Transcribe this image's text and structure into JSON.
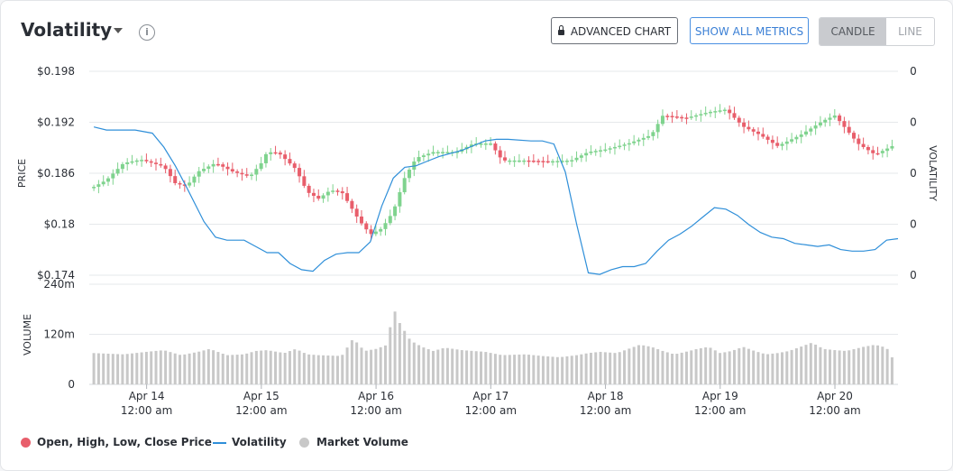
{
  "header": {
    "title": "Volatility",
    "info_glyph": "i",
    "advanced_chart_label": "ADVANCED CHART",
    "show_all_metrics_label": "SHOW ALL METRICS",
    "candle_label": "CANDLE",
    "line_label": "LINE",
    "selected_view": "CANDLE"
  },
  "colors": {
    "up": "#7fd38e",
    "down": "#e85e6b",
    "volatility_line": "#2f8fd9",
    "volume": "#c8c8c8",
    "accent_button": "#3a7fd5"
  },
  "legend": {
    "ohlc": "Open, High, Low, Close Price",
    "volatility": "Volatility",
    "volume": "Market Volume"
  },
  "chart_data": {
    "type": "candlestick",
    "price_axis": {
      "label": "PRICE",
      "ticks": [
        "$0.198",
        "$0.192",
        "$0.186",
        "$0.18",
        "$0.174"
      ],
      "ylim": [
        0.174,
        0.198
      ]
    },
    "volatility_axis": {
      "label": "VOLATILITY",
      "ticks": [
        "0",
        "0",
        "0",
        "0",
        "0"
      ]
    },
    "volume_axis": {
      "label": "VOLUME",
      "ticks": [
        "240m",
        "120m",
        "0"
      ],
      "ylim": [
        0,
        240
      ]
    },
    "x_axis": {
      "dates": [
        "Apr 14",
        "Apr 15",
        "Apr 16",
        "Apr 17",
        "Apr 18",
        "Apr 19",
        "Apr 20"
      ],
      "times": [
        "12:00 am",
        "12:00 am",
        "12:00 am",
        "12:00 am",
        "12:00 am",
        "12:00 am",
        "12:00 am"
      ],
      "range_days": [
        -0.5,
        6.55
      ]
    },
    "close_path": [
      [
        -0.46,
        0.1844
      ],
      [
        -0.35,
        0.1852
      ],
      [
        -0.2,
        0.1872
      ],
      [
        -0.05,
        0.1876
      ],
      [
        0.15,
        0.1868
      ],
      [
        0.25,
        0.1848
      ],
      [
        0.35,
        0.1845
      ],
      [
        0.45,
        0.1862
      ],
      [
        0.6,
        0.1872
      ],
      [
        0.75,
        0.1862
      ],
      [
        0.9,
        0.1856
      ],
      [
        1.0,
        0.1872
      ],
      [
        1.05,
        0.1885
      ],
      [
        1.15,
        0.1884
      ],
      [
        1.3,
        0.1865
      ],
      [
        1.4,
        0.1838
      ],
      [
        1.5,
        0.183
      ],
      [
        1.6,
        0.184
      ],
      [
        1.7,
        0.1838
      ],
      [
        1.85,
        0.1805
      ],
      [
        1.95,
        0.1788
      ],
      [
        2.05,
        0.1795
      ],
      [
        2.15,
        0.1815
      ],
      [
        2.25,
        0.1855
      ],
      [
        2.35,
        0.1878
      ],
      [
        2.5,
        0.1885
      ],
      [
        2.7,
        0.1885
      ],
      [
        2.85,
        0.1895
      ],
      [
        3.0,
        0.1895
      ],
      [
        3.1,
        0.1875
      ],
      [
        3.3,
        0.1875
      ],
      [
        3.5,
        0.1874
      ],
      [
        3.7,
        0.1875
      ],
      [
        3.85,
        0.1885
      ],
      [
        4.0,
        0.1888
      ],
      [
        4.2,
        0.1895
      ],
      [
        4.4,
        0.1905
      ],
      [
        4.5,
        0.1928
      ],
      [
        4.7,
        0.1925
      ],
      [
        4.9,
        0.1932
      ],
      [
        5.05,
        0.1935
      ],
      [
        5.2,
        0.1915
      ],
      [
        5.35,
        0.1905
      ],
      [
        5.5,
        0.1892
      ],
      [
        5.7,
        0.1905
      ],
      [
        5.9,
        0.1922
      ],
      [
        6.0,
        0.1928
      ],
      [
        6.2,
        0.1895
      ],
      [
        6.35,
        0.1882
      ],
      [
        6.5,
        0.1892
      ]
    ],
    "volatility_path": [
      [
        -0.46,
        0.31
      ],
      [
        -0.35,
        0.29
      ],
      [
        -0.1,
        0.29
      ],
      [
        0.05,
        0.27
      ],
      [
        0.15,
        0.18
      ],
      [
        0.25,
        0.06
      ],
      [
        0.35,
        -0.08
      ],
      [
        0.5,
        -0.3
      ],
      [
        0.6,
        -0.4
      ],
      [
        0.7,
        -0.42
      ],
      [
        0.85,
        -0.42
      ],
      [
        0.95,
        -0.46
      ],
      [
        1.05,
        -0.5
      ],
      [
        1.15,
        -0.5
      ],
      [
        1.25,
        -0.57
      ],
      [
        1.35,
        -0.61
      ],
      [
        1.45,
        -0.62
      ],
      [
        1.55,
        -0.55
      ],
      [
        1.65,
        -0.51
      ],
      [
        1.75,
        -0.5
      ],
      [
        1.85,
        -0.5
      ],
      [
        1.95,
        -0.43
      ],
      [
        2.05,
        -0.2
      ],
      [
        2.15,
        -0.02
      ],
      [
        2.25,
        0.05
      ],
      [
        2.35,
        0.06
      ],
      [
        2.45,
        0.09
      ],
      [
        2.55,
        0.12
      ],
      [
        2.75,
        0.16
      ],
      [
        2.95,
        0.22
      ],
      [
        3.05,
        0.23
      ],
      [
        3.15,
        0.23
      ],
      [
        3.35,
        0.22
      ],
      [
        3.45,
        0.22
      ],
      [
        3.55,
        0.2
      ],
      [
        3.65,
        0.02
      ],
      [
        3.75,
        -0.32
      ],
      [
        3.85,
        -0.63
      ],
      [
        3.95,
        -0.64
      ],
      [
        4.05,
        -0.61
      ],
      [
        4.15,
        -0.59
      ],
      [
        4.25,
        -0.59
      ],
      [
        4.35,
        -0.57
      ],
      [
        4.45,
        -0.49
      ],
      [
        4.55,
        -0.42
      ],
      [
        4.65,
        -0.38
      ],
      [
        4.75,
        -0.33
      ],
      [
        4.85,
        -0.27
      ],
      [
        4.95,
        -0.21
      ],
      [
        5.05,
        -0.22
      ],
      [
        5.15,
        -0.26
      ],
      [
        5.25,
        -0.32
      ],
      [
        5.35,
        -0.37
      ],
      [
        5.45,
        -0.4
      ],
      [
        5.55,
        -0.41
      ],
      [
        5.65,
        -0.44
      ],
      [
        5.75,
        -0.45
      ],
      [
        5.85,
        -0.46
      ],
      [
        5.95,
        -0.45
      ],
      [
        6.05,
        -0.48
      ],
      [
        6.15,
        -0.49
      ],
      [
        6.25,
        -0.49
      ],
      [
        6.35,
        -0.48
      ],
      [
        6.45,
        -0.42
      ],
      [
        6.55,
        -0.41
      ]
    ],
    "volume_path": [
      [
        -0.46,
        75
      ],
      [
        -0.2,
        72
      ],
      [
        0.0,
        78
      ],
      [
        0.15,
        82
      ],
      [
        0.3,
        70
      ],
      [
        0.45,
        78
      ],
      [
        0.55,
        85
      ],
      [
        0.7,
        70
      ],
      [
        0.85,
        72
      ],
      [
        0.95,
        80
      ],
      [
        1.05,
        82
      ],
      [
        1.2,
        75
      ],
      [
        1.3,
        85
      ],
      [
        1.4,
        72
      ],
      [
        1.5,
        70
      ],
      [
        1.7,
        68
      ],
      [
        1.8,
        110
      ],
      [
        1.9,
        80
      ],
      [
        2.0,
        85
      ],
      [
        2.1,
        95
      ],
      [
        2.15,
        185
      ],
      [
        2.2,
        150
      ],
      [
        2.3,
        105
      ],
      [
        2.4,
        90
      ],
      [
        2.5,
        80
      ],
      [
        2.6,
        88
      ],
      [
        2.75,
        82
      ],
      [
        2.85,
        80
      ],
      [
        2.95,
        78
      ],
      [
        3.1,
        70
      ],
      [
        3.3,
        72
      ],
      [
        3.45,
        68
      ],
      [
        3.6,
        65
      ],
      [
        3.75,
        70
      ],
      [
        3.85,
        75
      ],
      [
        3.95,
        78
      ],
      [
        4.1,
        75
      ],
      [
        4.2,
        85
      ],
      [
        4.3,
        95
      ],
      [
        4.4,
        90
      ],
      [
        4.5,
        80
      ],
      [
        4.6,
        72
      ],
      [
        4.7,
        78
      ],
      [
        4.8,
        85
      ],
      [
        4.9,
        90
      ],
      [
        5.0,
        75
      ],
      [
        5.1,
        80
      ],
      [
        5.2,
        90
      ],
      [
        5.3,
        80
      ],
      [
        5.4,
        72
      ],
      [
        5.5,
        75
      ],
      [
        5.6,
        80
      ],
      [
        5.7,
        90
      ],
      [
        5.8,
        100
      ],
      [
        5.9,
        85
      ],
      [
        6.0,
        82
      ],
      [
        6.1,
        80
      ],
      [
        6.25,
        90
      ],
      [
        6.35,
        95
      ],
      [
        6.45,
        88
      ],
      [
        6.55,
        40
      ]
    ]
  }
}
